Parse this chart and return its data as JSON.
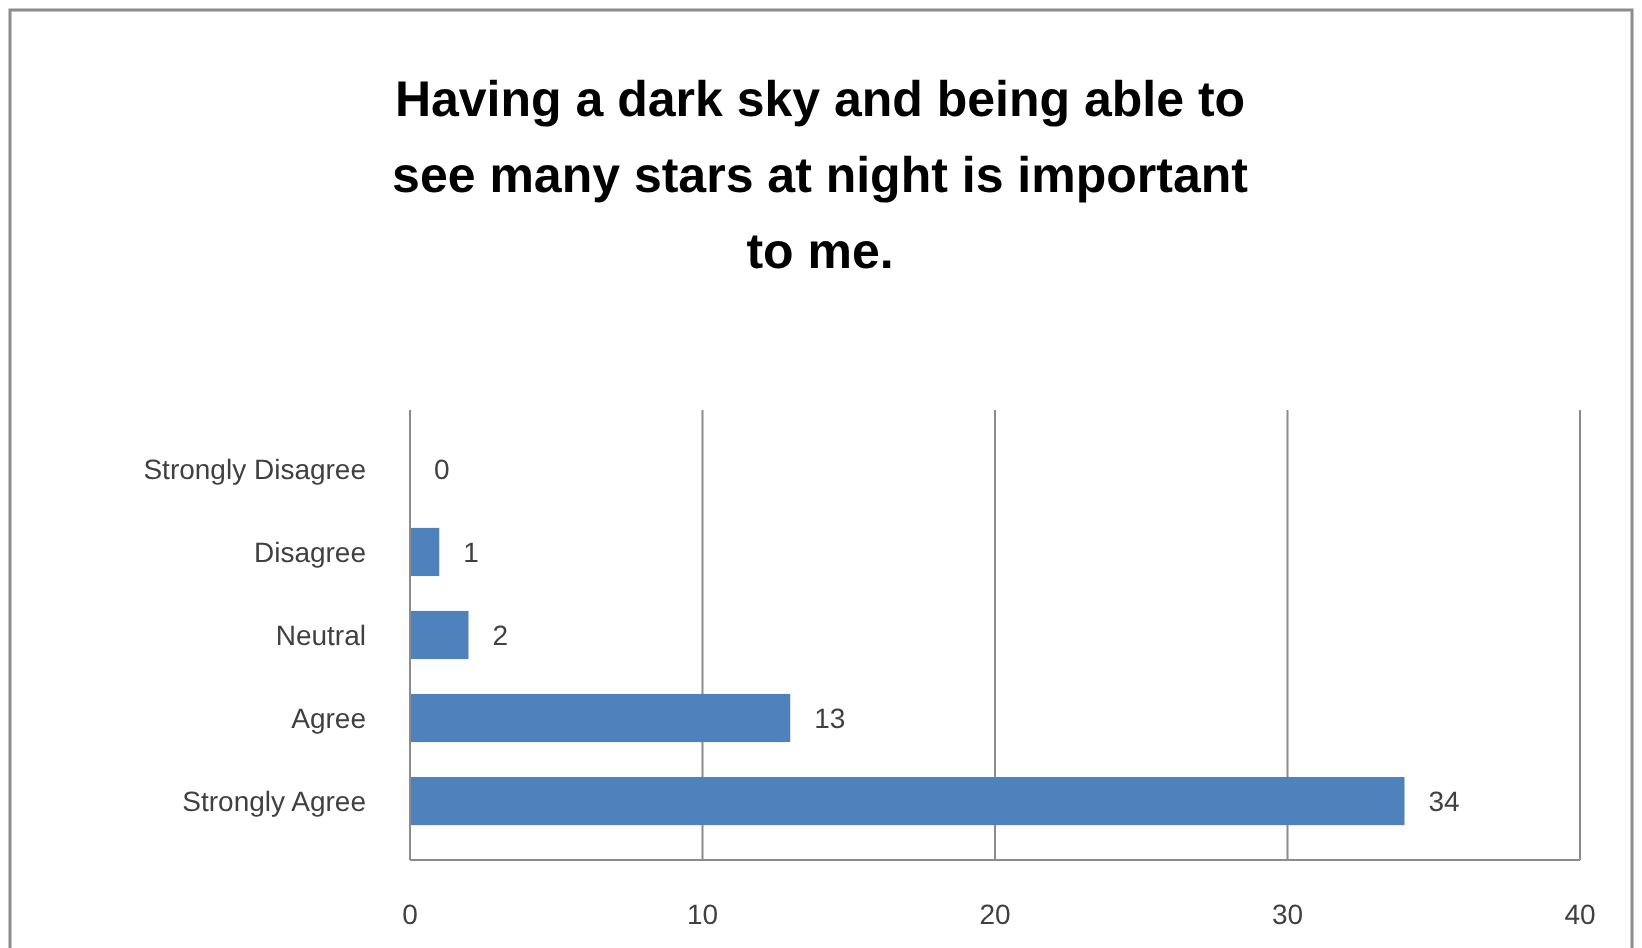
{
  "chart_data": {
    "type": "bar",
    "orientation": "horizontal",
    "title": "Having a dark sky and being able to see many stars at night is important to me.",
    "categories": [
      "Strongly Disagree",
      "Disagree",
      "Neutral",
      "Agree",
      "Strongly Agree"
    ],
    "values": [
      0,
      1,
      2,
      13,
      34
    ],
    "color": "#4f81bd",
    "xlim": [
      0,
      40
    ],
    "xticks": [
      0,
      10,
      20,
      30,
      40
    ],
    "grid": "x",
    "data_labels": true
  }
}
